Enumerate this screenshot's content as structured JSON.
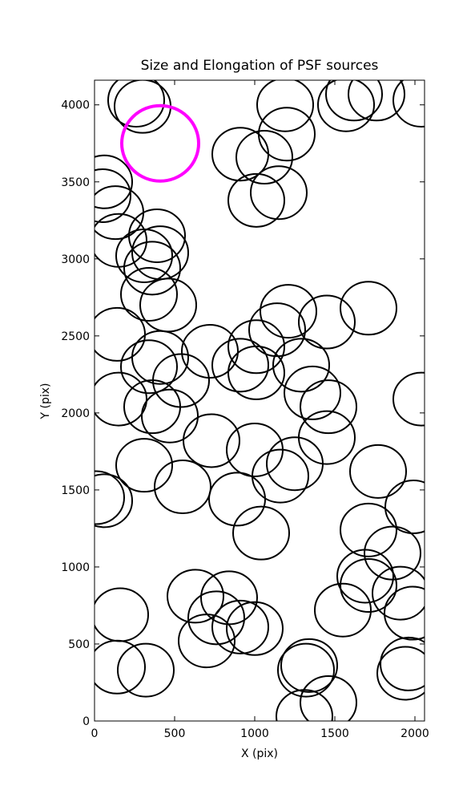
{
  "chart_data": {
    "type": "ellipse",
    "title": "Size and Elongation of PSF sources",
    "x_label": "X (pix)",
    "y_label": "Y (pix)",
    "xlim": [
      0,
      2060
    ],
    "ylim": [
      0,
      4160
    ],
    "xticks": [
      0,
      500,
      1000,
      1500,
      2000
    ],
    "yticks": [
      0,
      500,
      1000,
      1500,
      2000,
      2500,
      3000,
      3500,
      4000
    ],
    "series": [
      {
        "color": "#000000",
        "x": [
          260,
          300,
          1190,
          1200,
          1570,
          1620,
          1760,
          2040,
          910,
          1060,
          1010,
          1150,
          60,
          50,
          130,
          150,
          390,
          410,
          310,
          360,
          340,
          460,
          140,
          1210,
          1140,
          1450,
          1710,
          720,
          410,
          340,
          540,
          1010,
          910,
          1010,
          1290,
          1360,
          1460,
          150,
          360,
          470,
          2040,
          730,
          1000,
          1160,
          1250,
          1450,
          310,
          550,
          1770,
          1990,
          10,
          60,
          890,
          1040,
          1710,
          1860,
          1690,
          1710,
          1550,
          1910,
          1985,
          160,
          630,
          840,
          760,
          910,
          1000,
          700,
          140,
          320,
          1340,
          1320,
          1460,
          1310,
          1940,
          1960
        ],
        "values": [
          4030,
          3990,
          4000,
          3810,
          4000,
          4070,
          4070,
          4030,
          3680,
          3660,
          3380,
          3430,
          3500,
          3410,
          3300,
          3120,
          3150,
          3040,
          3020,
          2940,
          2770,
          2700,
          2510,
          2660,
          2540,
          2590,
          2680,
          2400,
          2360,
          2300,
          2210,
          2430,
          2310,
          2260,
          2310,
          2130,
          2040,
          2090,
          2040,
          1980,
          2090,
          1820,
          1760,
          1590,
          1670,
          1840,
          1660,
          1520,
          1620,
          1390,
          1450,
          1430,
          1440,
          1220,
          1240,
          1090,
          940,
          880,
          720,
          830,
          700,
          690,
          810,
          800,
          670,
          610,
          600,
          520,
          350,
          330,
          360,
          330,
          120,
          30,
          310,
          370
        ]
      },
      {
        "color": "#ff00ff",
        "x": [
          410
        ],
        "values": [
          3750
        ]
      }
    ]
  }
}
